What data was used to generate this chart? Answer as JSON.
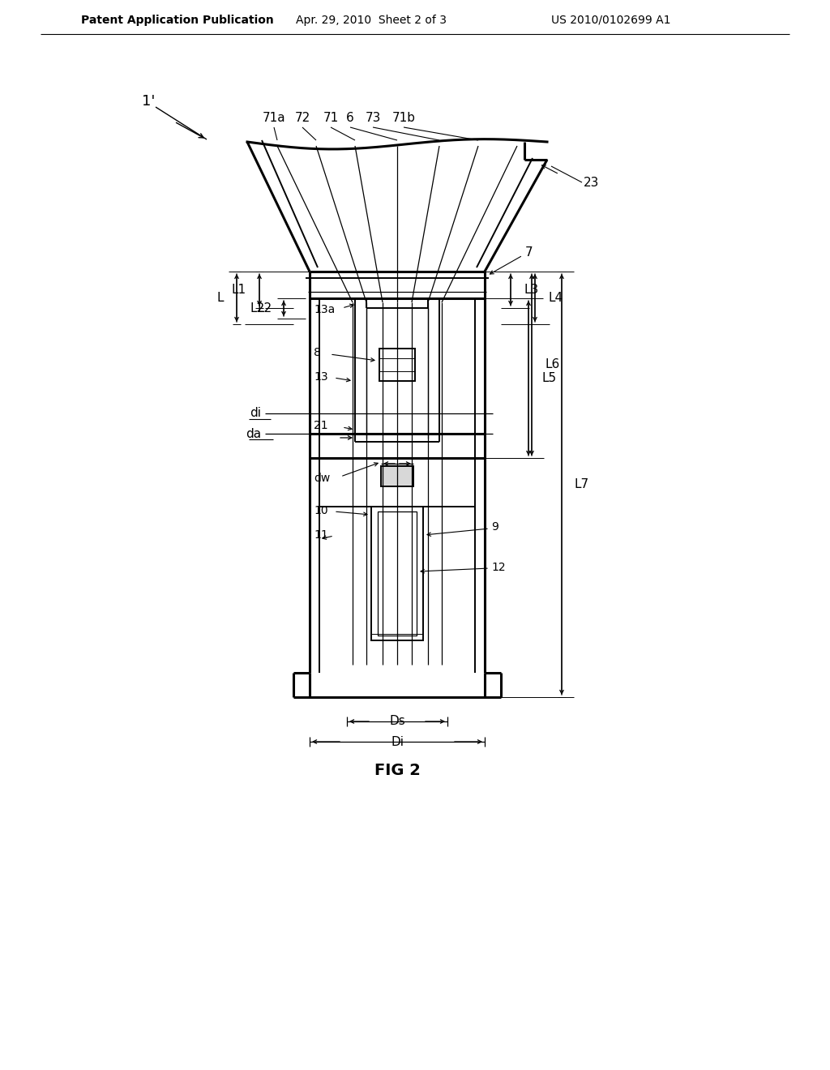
{
  "bg_color": "#ffffff",
  "line_color": "#000000",
  "header_left": "Patent Application Publication",
  "header_mid": "Apr. 29, 2010  Sheet 2 of 3",
  "header_right": "US 2010/0102699 A1",
  "fig_label": "FIG 2"
}
